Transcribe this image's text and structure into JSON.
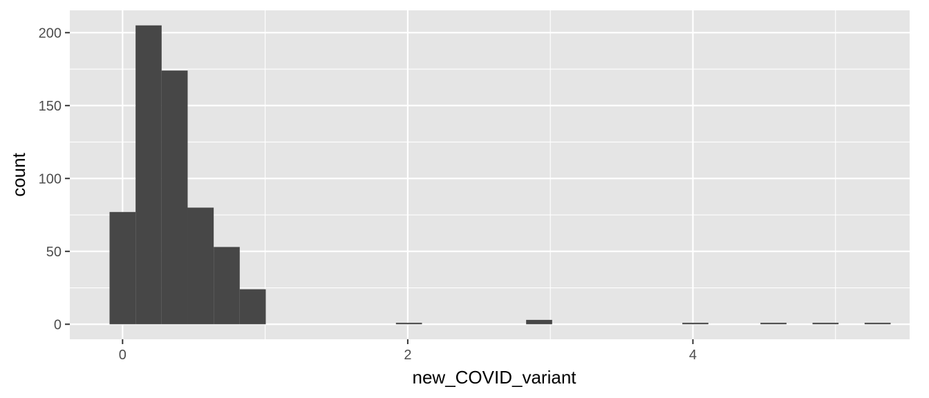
{
  "chart_data": {
    "type": "bar",
    "subtype": "histogram",
    "title": "",
    "xlabel": "new_COVID_variant",
    "ylabel": "count",
    "bin_width": 0.1826,
    "bins": [
      {
        "x0": -0.0913,
        "x1": 0.0913,
        "count": 77
      },
      {
        "x0": 0.0913,
        "x1": 0.2739,
        "count": 205
      },
      {
        "x0": 0.2739,
        "x1": 0.4565,
        "count": 174
      },
      {
        "x0": 0.4565,
        "x1": 0.6391,
        "count": 80
      },
      {
        "x0": 0.6391,
        "x1": 0.8217,
        "count": 53
      },
      {
        "x0": 0.8217,
        "x1": 1.0043,
        "count": 24
      },
      {
        "x0": 1.9173,
        "x1": 2.0999,
        "count": 1
      },
      {
        "x0": 2.8303,
        "x1": 3.0129,
        "count": 3
      },
      {
        "x0": 3.9259,
        "x1": 4.1085,
        "count": 1
      },
      {
        "x0": 4.4737,
        "x1": 4.6563,
        "count": 1
      },
      {
        "x0": 4.8389,
        "x1": 5.0215,
        "count": 1
      },
      {
        "x0": 5.2041,
        "x1": 5.3867,
        "count": 1
      }
    ],
    "xlim": [
      -0.37,
      5.52
    ],
    "ylim": [
      -10.3,
      215.3
    ],
    "x_ticks": [
      0,
      2,
      4
    ],
    "x_minor_ticks": [
      -1,
      1,
      3,
      5
    ],
    "y_ticks": [
      0,
      50,
      100,
      150,
      200
    ],
    "y_minor_ticks": [
      25,
      75,
      125,
      175
    ],
    "grid": true,
    "legend": "none",
    "colors": {
      "bar": "#474747",
      "panel": "#e5e5e5",
      "grid": "#ffffff",
      "tick_text": "#4d4d4d",
      "axis_title": "#000000"
    }
  }
}
